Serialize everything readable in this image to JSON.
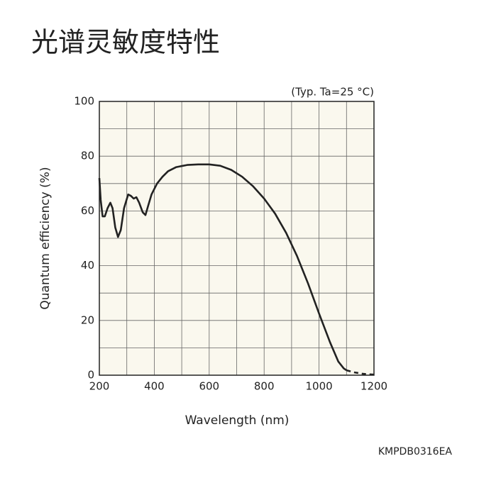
{
  "chart_data": {
    "type": "line",
    "title": "光谱灵敏度特性",
    "annotation": "(Typ. Ta=25 °C)",
    "code": "KMPDB0316EA",
    "x_label": "Wavelength (nm)",
    "y_label": "Quantum efficiency (%)",
    "xlim": [
      200,
      1200
    ],
    "xticks": [
      200,
      400,
      600,
      800,
      1000,
      1200
    ],
    "xminor_ticks": [
      300,
      500,
      700,
      900,
      1100
    ],
    "ylim": [
      0,
      100
    ],
    "yticks": [
      0,
      20,
      40,
      60,
      80,
      100
    ],
    "yminor_ticks": [
      10,
      30,
      50,
      70,
      90
    ],
    "grid": true,
    "series": [
      {
        "style": "solid",
        "color": "#222222",
        "x": [
          200,
          205,
          212,
          220,
          230,
          240,
          248,
          258,
          268,
          278,
          290,
          305,
          315,
          325,
          335,
          345,
          358,
          368,
          378,
          390,
          410,
          430,
          450,
          480,
          520,
          560,
          600,
          640,
          680,
          720,
          760,
          800,
          840,
          880,
          920,
          960,
          1000,
          1040,
          1070,
          1090,
          1100
        ],
        "values": [
          72,
          64,
          58,
          58,
          61,
          63,
          61,
          54,
          50.5,
          53,
          61,
          66,
          65.5,
          64.5,
          65,
          63,
          59.5,
          58.5,
          62,
          66,
          70,
          72.5,
          74.5,
          76,
          76.8,
          77,
          77,
          76.5,
          75,
          72.5,
          69,
          64.5,
          59,
          52,
          43.5,
          33.5,
          22.5,
          12,
          5,
          2.5,
          1.8
        ]
      },
      {
        "style": "dashed",
        "color": "#222222",
        "x": [
          1100,
          1130,
          1160,
          1200
        ],
        "values": [
          1.8,
          1,
          0.5,
          0.2
        ]
      }
    ]
  }
}
